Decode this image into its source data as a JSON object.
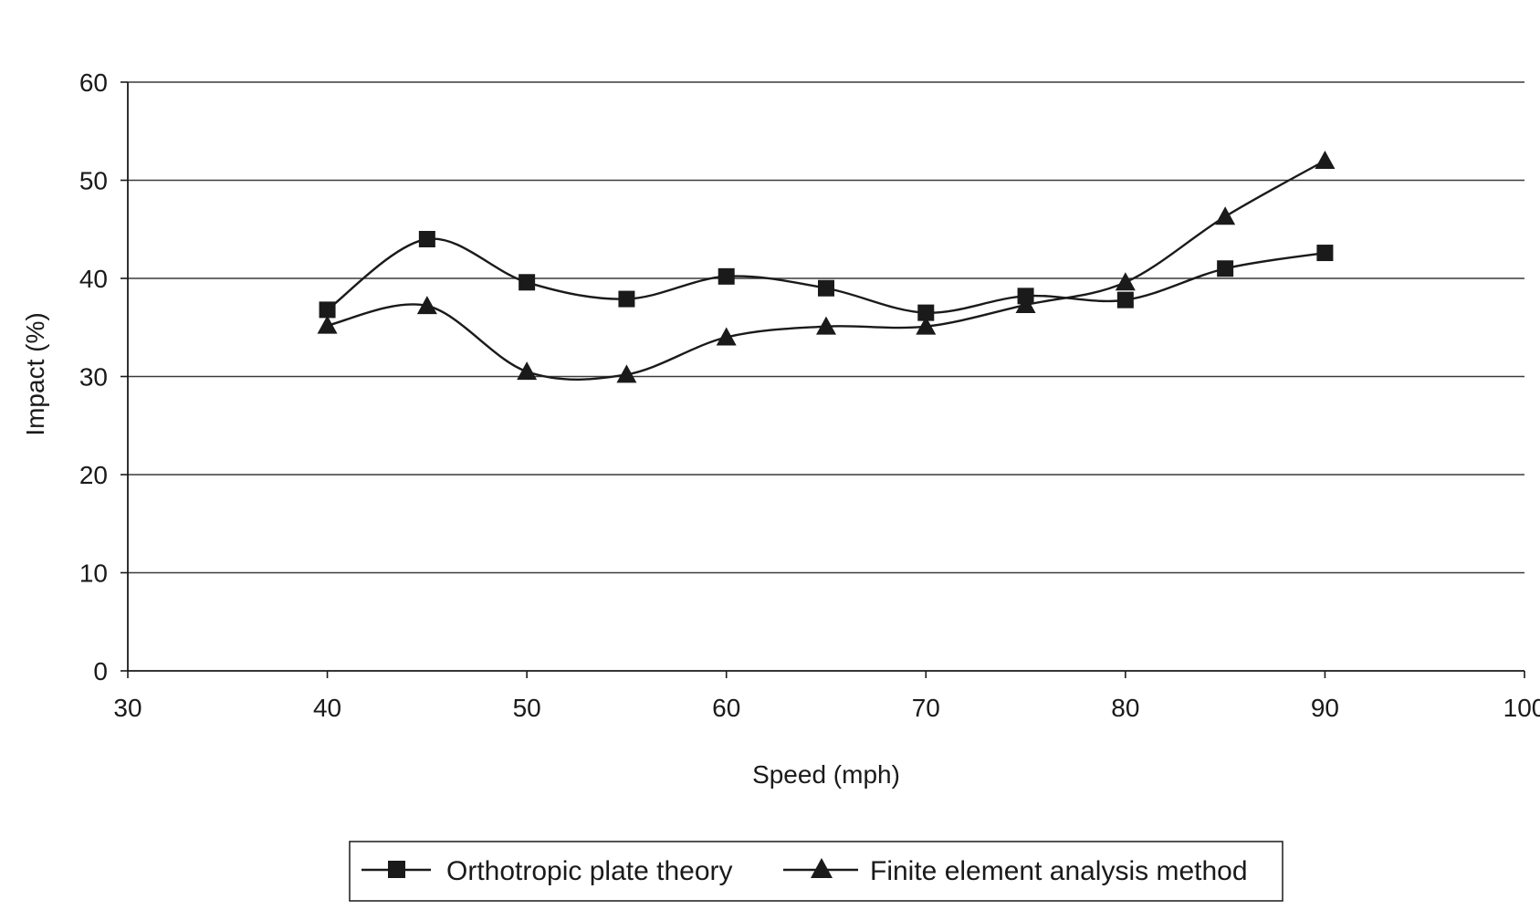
{
  "chart_data": {
    "type": "line",
    "title": "",
    "xlabel": "Speed (mph)",
    "ylabel": "Impact (%)",
    "xlim": [
      30,
      100
    ],
    "ylim": [
      0,
      60
    ],
    "x_ticks": [
      30,
      40,
      50,
      60,
      70,
      80,
      90,
      100
    ],
    "y_ticks": [
      0,
      10,
      20,
      30,
      40,
      50,
      60
    ],
    "grid": "horizontal",
    "smoothed": true,
    "legend_position": "bottom-center",
    "series": [
      {
        "name": "Orthotropic plate theory",
        "marker": "square",
        "color": "#1a1a1a",
        "x": [
          40,
          45,
          50,
          55,
          60,
          65,
          70,
          75,
          80,
          85,
          90
        ],
        "values": [
          36.8,
          44.0,
          39.6,
          37.9,
          40.2,
          39.0,
          36.5,
          38.2,
          37.8,
          41.0,
          42.6
        ]
      },
      {
        "name": "Finite element analysis method",
        "marker": "triangle",
        "color": "#1a1a1a",
        "x": [
          40,
          45,
          50,
          55,
          60,
          65,
          70,
          75,
          80,
          85,
          90
        ],
        "values": [
          35.2,
          37.2,
          30.5,
          30.2,
          34.0,
          35.1,
          35.1,
          37.3,
          39.6,
          46.3,
          52.0
        ]
      }
    ]
  }
}
